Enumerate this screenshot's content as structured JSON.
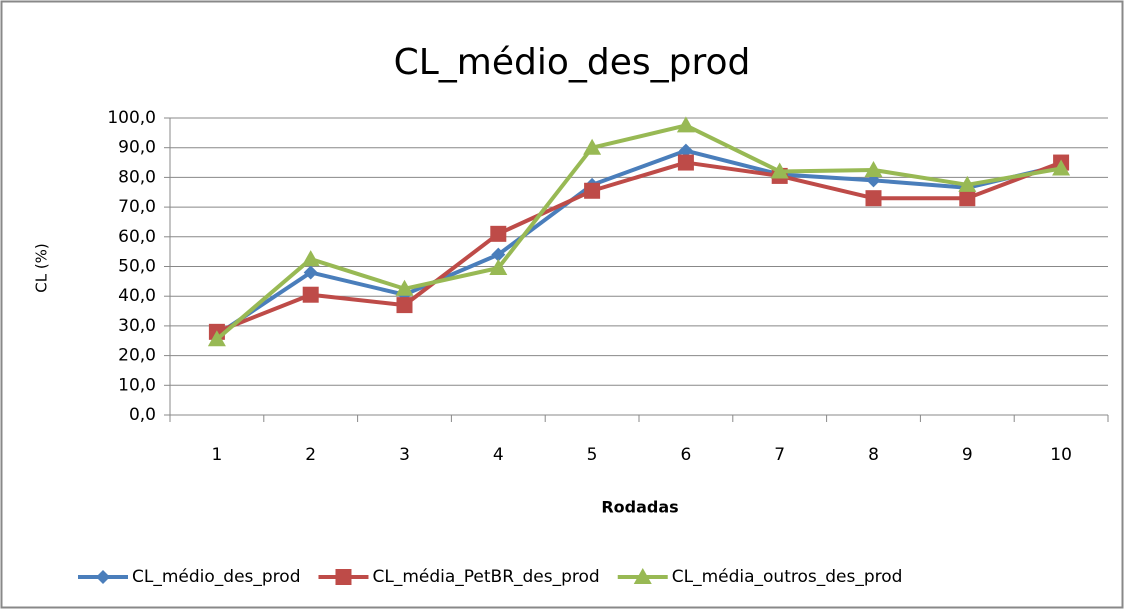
{
  "chart_data": {
    "type": "line",
    "title": "CL_médio_des_prod",
    "xlabel": "Rodadas",
    "ylabel": "CL (%)",
    "categories": [
      "1",
      "2",
      "3",
      "4",
      "5",
      "6",
      "7",
      "8",
      "9",
      "10"
    ],
    "series": [
      {
        "name": "CL_médio_des_prod",
        "color": "#4a7ebb",
        "marker": "diamond",
        "values": [
          27,
          48,
          40.5,
          54,
          77.5,
          89,
          81,
          79,
          76.5,
          84
        ]
      },
      {
        "name": "CL_média_PetBR_des_prod",
        "color": "#be4b48",
        "marker": "square",
        "values": [
          28,
          40.5,
          37,
          61,
          75.5,
          85,
          80.5,
          73,
          73,
          85
        ]
      },
      {
        "name": "CL_média_outros_des_prod",
        "color": "#98b954",
        "marker": "triangle",
        "values": [
          25.5,
          52.5,
          42.5,
          49.5,
          90,
          97.5,
          82,
          82.5,
          77.5,
          83
        ]
      }
    ],
    "ylim": [
      0,
      100
    ],
    "yticks": [
      {
        "value": 0,
        "label": "0,0"
      },
      {
        "value": 10,
        "label": "10,0"
      },
      {
        "value": 20,
        "label": "20,0"
      },
      {
        "value": 30,
        "label": "30,0"
      },
      {
        "value": 40,
        "label": "40,0"
      },
      {
        "value": 50,
        "label": "50,0"
      },
      {
        "value": 60,
        "label": "60,0"
      },
      {
        "value": 70,
        "label": "70,0"
      },
      {
        "value": 80,
        "label": "80,0"
      },
      {
        "value": 90,
        "label": "90,0"
      },
      {
        "value": 100,
        "label": "100,0"
      }
    ],
    "grid": true,
    "legend": "bottom"
  }
}
